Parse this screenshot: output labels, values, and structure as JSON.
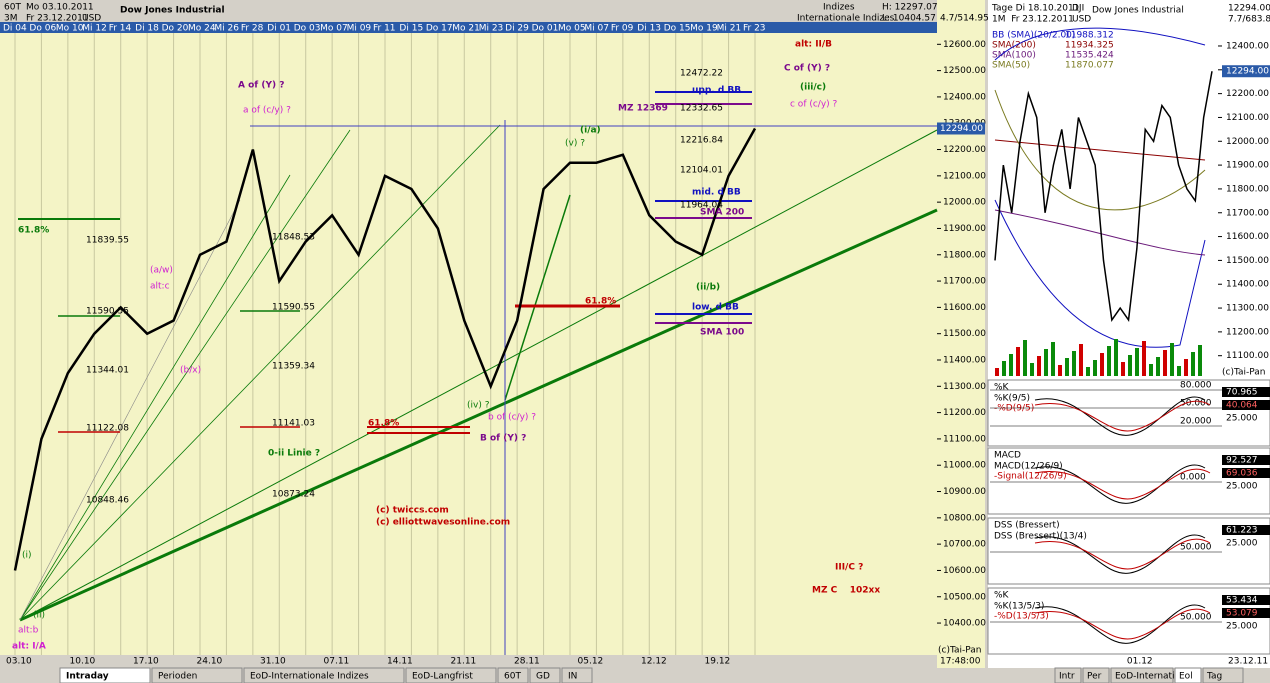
{
  "header": {
    "timeframe": "60T",
    "period": "3M",
    "from": "Mo 03.10.2011",
    "to": "Fr 23.12.2011",
    "currency": "USD",
    "instrument": "Dow Jones Industrial",
    "group": "Indizes",
    "group_full": "Internationale Indizes",
    "high": "H: 12297.07",
    "low": "L: 10404.57",
    "change": "4.7/514.95"
  },
  "right_header": {
    "line1": "Tage Di 18.10.2011",
    "symbol": "DJI",
    "instrument": "Dow Jones Industrial",
    "line2": "1M  Fr 23.12.2011",
    "currency": "USD",
    "price": "12294.00",
    "change": "7.7/683.86"
  },
  "right_legend": [
    {
      "text": "BB (SMA)(20/2.00)",
      "color": "#1010c0"
    },
    {
      "text": "11988.312",
      "color": "#1010c0"
    },
    {
      "text": "SMA(200)",
      "color": "#8b0000"
    },
    {
      "text": "11934.325",
      "color": "#8b0000"
    },
    {
      "text": "SMA(100)",
      "color": "#6a1a7a"
    },
    {
      "text": "11535.424",
      "color": "#6a1a7a"
    },
    {
      "text": "SMA(50)",
      "color": "#7a7a20"
    },
    {
      "text": "11870.077",
      "color": "#7a7a20"
    }
  ],
  "chart_data": [
    {
      "type": "line",
      "color": "#000000",
      "categories": [
        "Di 04",
        "Do 06",
        "Mo 10",
        "Mi 12",
        "Fr 14",
        "Di 18",
        "Do 20",
        "Mo 24",
        "Mi 26",
        "Fr 28",
        "Di 01",
        "Do 03",
        "Mo 07",
        "Mi 09",
        "Fr 11",
        "Di 15",
        "Do 17",
        "Mo 21",
        "Mi 23",
        "Di 29",
        "Do 01",
        "Mo 05",
        "Mi 07",
        "Fr 09",
        "Di 13",
        "Do 15",
        "Mo 19",
        "Mi 21",
        "Fr 23"
      ],
      "values": [
        10600,
        11100,
        11350,
        11500,
        11600,
        11500,
        11550,
        11800,
        11850,
        12200,
        11700,
        11850,
        11950,
        11800,
        12100,
        12050,
        11900,
        11550,
        11300,
        11550,
        12050,
        12150,
        12150,
        12180,
        11950,
        11850,
        11800,
        12100,
        12280
      ],
      "x_labels": [
        "03.10",
        "10.10",
        "17.10",
        "24.10",
        "31.10",
        "07.11",
        "14.11",
        "21.11",
        "28.11",
        "05.12",
        "12.12",
        "19.12"
      ],
      "ylim": [
        10290,
        12700
      ],
      "yticks": [
        {
          "value": 10400,
          "label": "10400.00"
        },
        {
          "value": 10500,
          "label": "10500.00"
        },
        {
          "value": 10600,
          "label": "10600.00"
        },
        {
          "value": 10700,
          "label": "10700.00"
        },
        {
          "value": 10800,
          "label": "10800.00"
        },
        {
          "value": 10900,
          "label": "10900.00"
        },
        {
          "value": 11000,
          "label": "11000.00"
        },
        {
          "value": 11100,
          "label": "11100.00"
        },
        {
          "value": 11200,
          "label": "11200.00"
        },
        {
          "value": 11300,
          "label": "11300.00"
        },
        {
          "value": 11400,
          "label": "11400.00"
        },
        {
          "value": 11500,
          "label": "11500.00"
        },
        {
          "value": 11600,
          "label": "11600.00"
        },
        {
          "value": 11700,
          "label": "11700.00"
        },
        {
          "value": 11800,
          "label": "11800.00"
        },
        {
          "value": 11900,
          "label": "11900.00"
        },
        {
          "value": 12000,
          "label": "12000.00"
        },
        {
          "value": 12100,
          "label": "12100.00"
        },
        {
          "value": 12200,
          "label": "12200.00"
        },
        {
          "value": 12300,
          "label": "12300.00"
        },
        {
          "value": 12400,
          "label": "12400.00"
        },
        {
          "value": 12500,
          "label": "12500.00"
        },
        {
          "value": 12600,
          "label": "12600.00"
        }
      ],
      "grid": true,
      "last_value_label": "12294.00",
      "time_label": "17:48:00",
      "source": "(c)Tai-Pan",
      "annotations": [
        {
          "text": "A of (Y) ?",
          "color": "#7b0a8c"
        },
        {
          "text": "a of (c/y) ?",
          "color": "#d020d0"
        },
        {
          "text": "(a/w)",
          "color": "#d020d0"
        },
        {
          "text": "alt:c",
          "color": "#d020d0"
        },
        {
          "text": "(b/x)",
          "color": "#d020d0"
        },
        {
          "text": "61.8%",
          "color": "#0a7a0a"
        },
        {
          "text": "0-ii Linie ?",
          "color": "#0a7a0a"
        },
        {
          "text": "61.8%",
          "color": "#c00000"
        },
        {
          "text": "B of (Y) ?",
          "color": "#7b0a8c"
        },
        {
          "text": "b of (c/y) ?",
          "color": "#d020d0"
        },
        {
          "text": "(iv) ?",
          "color": "#0a7a0a"
        },
        {
          "text": "61.8%",
          "color": "#c00000"
        },
        {
          "text": "(i/a)",
          "color": "#0a7a0a"
        },
        {
          "text": "(v) ?",
          "color": "#0a7a0a"
        },
        {
          "text": "(ii/b)",
          "color": "#0a7a0a"
        },
        {
          "text": "upp. d BB",
          "color": "#1010c0"
        },
        {
          "text": "MZ 12369",
          "color": "#7b0a8c"
        },
        {
          "text": "mid. d BB",
          "color": "#1010c0"
        },
        {
          "text": "SMA 200",
          "color": "#7b0a8c"
        },
        {
          "text": "low. d BB",
          "color": "#1010c0"
        },
        {
          "text": "SMA 100",
          "color": "#7b0a8c"
        },
        {
          "text": "alt: II/B",
          "color": "#c00000"
        },
        {
          "text": "C of (Y) ?",
          "color": "#7b0a8c"
        },
        {
          "text": "(iii/c)",
          "color": "#0a7a0a"
        },
        {
          "text": "c of (c/y) ?",
          "color": "#d020d0"
        },
        {
          "text": "III/C ?",
          "color": "#c00000"
        },
        {
          "text": "MZ C    102xx",
          "color": "#c00000"
        },
        {
          "text": "(c) twiccs.com",
          "color": "#c00000"
        },
        {
          "text": "(c) elliottwavesonline.com",
          "color": "#c00000"
        },
        {
          "text": "(i)",
          "color": "#0a7a0a"
        },
        {
          "text": "(ii)",
          "color": "#0a7a0a"
        },
        {
          "text": "alt:b",
          "color": "#d020d0"
        },
        {
          "text": "alt: I/A",
          "color": "#d020d0"
        },
        {
          "text": "11839.55",
          "color": "#000000"
        },
        {
          "text": "11590.55",
          "color": "#000000"
        },
        {
          "text": "11344.01",
          "color": "#000000"
        },
        {
          "text": "11122.08",
          "color": "#000000"
        },
        {
          "text": "10848.46",
          "color": "#000000"
        },
        {
          "text": "11848.53",
          "color": "#000000"
        },
        {
          "text": "11590.55",
          "color": "#000000"
        },
        {
          "text": "11359.34",
          "color": "#000000"
        },
        {
          "text": "11141.03",
          "color": "#000000"
        },
        {
          "text": "10873.24",
          "color": "#000000"
        },
        {
          "text": "12472.22",
          "color": "#000000"
        },
        {
          "text": "12332.65",
          "color": "#000000"
        },
        {
          "text": "12216.84",
          "color": "#000000"
        },
        {
          "text": "12104.01",
          "color": "#000000"
        },
        {
          "text": "11964.04",
          "color": "#000000"
        }
      ]
    },
    {
      "type": "line",
      "color": "#000000",
      "categories": [
        null,
        null,
        null,
        null,
        null,
        null,
        null,
        null,
        null,
        null,
        null,
        null,
        null,
        null,
        null,
        null,
        null,
        "01.12",
        null,
        null,
        null,
        null,
        null,
        null,
        null,
        null,
        null
      ],
      "values": [
        11500,
        11900,
        11700,
        12000,
        12200,
        12100,
        11700,
        11900,
        12050,
        11800,
        12100,
        12000,
        11900,
        11500,
        11250,
        11300,
        11250,
        11550,
        12050,
        12000,
        12150,
        12100,
        11900,
        11800,
        11750,
        12100,
        12294
      ],
      "ylim": [
        11040,
        12572
      ],
      "yticks": [
        {
          "value": 11100,
          "label": "11100.00"
        },
        {
          "value": 11200,
          "label": "11200.00"
        },
        {
          "value": 11300,
          "label": "11300.00"
        },
        {
          "value": 11400,
          "label": "11400.00"
        },
        {
          "value": 11500,
          "label": "11500.00"
        },
        {
          "value": 11600,
          "label": "11600.00"
        },
        {
          "value": 11700,
          "label": "11700.00"
        },
        {
          "value": 11800,
          "label": "11800.00"
        },
        {
          "value": 11900,
          "label": "11900.00"
        },
        {
          "value": 12000,
          "label": "12000.00"
        },
        {
          "value": 12100,
          "label": "12100.00"
        },
        {
          "value": 12200,
          "label": "12200.00"
        },
        {
          "value": 12300,
          "label": "12300.00"
        },
        {
          "value": 12400,
          "label": "12400.00"
        }
      ],
      "last_value_label": "12294.00",
      "date_label": "23.12.11",
      "source": "(c)Tai-Pan"
    }
  ],
  "indicators": [
    {
      "name": "%K",
      "lines": [
        "%K(9/5)",
        "-%D(9/5)"
      ],
      "levels": [
        "80.000",
        "50.000",
        "20.000"
      ],
      "ticks": [
        "70.965",
        "40.064",
        "25.000"
      ]
    },
    {
      "name": "MACD",
      "lines": [
        "MACD(12/26/9)",
        "-Signal(12/26/9)"
      ],
      "levels": [
        "0.000"
      ],
      "ticks": [
        "92.527",
        "69.036",
        "25.000"
      ]
    },
    {
      "name": "DSS (Bressert)",
      "lines": [
        "DSS (Bressert)(13/4)"
      ],
      "levels": [
        "50.000"
      ],
      "ticks": [
        "61.223",
        "25.000"
      ]
    },
    {
      "name": "%K",
      "lines": [
        "%K(13/5/3)",
        "-%D(13/5/3)"
      ],
      "levels": [
        "50.000"
      ],
      "ticks": [
        "53.434",
        "53.079",
        "25.000"
      ]
    }
  ],
  "tabs": [
    "Intraday",
    "Perioden",
    "EoD-Internationale Indizes",
    "EoD-Langfrist",
    "60T",
    "GD",
    "IN"
  ],
  "right_tabs": [
    "Intr",
    "Per",
    "EoD-Internatic",
    "Eol",
    "Tag"
  ]
}
